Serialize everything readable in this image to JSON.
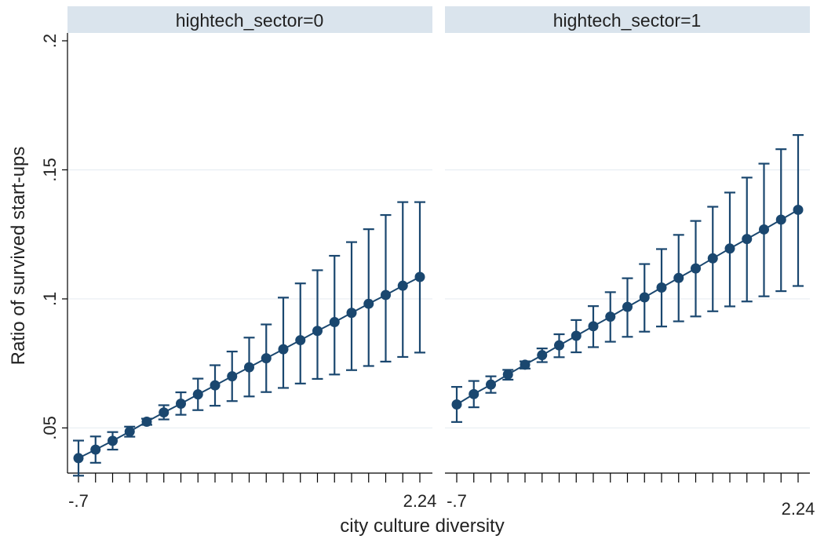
{
  "colors": {
    "series": "#1a476f",
    "strip": "#dae4ed",
    "grid": "#e8edf2",
    "axis": "#000000"
  },
  "chart_data": {
    "type": "line",
    "xlabel": "city culture diversity",
    "ylabel": "Ratio of survived start-ups",
    "xlim": [
      -0.7,
      2.24
    ],
    "ylim": [
      0.0325,
      0.2
    ],
    "x_tick_labels": [
      "-.7",
      "2.24"
    ],
    "y_tick_labels": [
      ".05",
      ".1",
      ".15",
      ".2"
    ],
    "y_ticks": [
      0.05,
      0.1,
      0.15,
      0.2
    ],
    "grid": "horizontal",
    "markers": "circle",
    "error_bars": "confidence interval",
    "x": [
      -0.7,
      -0.553,
      -0.406,
      -0.259,
      -0.112,
      0.035,
      0.182,
      0.329,
      0.476,
      0.623,
      0.77,
      0.917,
      1.064,
      1.211,
      1.358,
      1.505,
      1.652,
      1.799,
      1.946,
      2.093,
      2.24
    ],
    "panels": [
      {
        "title": "hightech_sector=0",
        "y": [
          0.0383,
          0.0416,
          0.045,
          0.0486,
          0.0524,
          0.056,
          0.0594,
          0.063,
          0.0665,
          0.07,
          0.0735,
          0.077,
          0.0805,
          0.084,
          0.0876,
          0.091,
          0.0946,
          0.0981,
          0.1015,
          0.1051,
          0.1085
        ],
        "lo": [
          0.0315,
          0.0365,
          0.0416,
          0.0466,
          0.0512,
          0.0533,
          0.0551,
          0.0569,
          0.0586,
          0.0604,
          0.0622,
          0.0639,
          0.0655,
          0.0672,
          0.069,
          0.0707,
          0.0724,
          0.074,
          0.0757,
          0.0775,
          0.0792
        ],
        "hi": [
          0.0451,
          0.0467,
          0.0484,
          0.0505,
          0.0536,
          0.0588,
          0.0638,
          0.0691,
          0.0743,
          0.0796,
          0.085,
          0.0901,
          0.1005,
          0.106,
          0.1111,
          0.1167,
          0.122,
          0.127,
          0.1325,
          0.1375,
          0.1375
        ]
      },
      {
        "title": "hightech_sector=1",
        "y": [
          0.0591,
          0.0631,
          0.0668,
          0.0707,
          0.0745,
          0.0782,
          0.082,
          0.0857,
          0.0894,
          0.0931,
          0.0969,
          0.1006,
          0.1044,
          0.1081,
          0.1118,
          0.1157,
          0.1195,
          0.1232,
          0.1269,
          0.1307,
          0.1345
        ],
        "lo": [
          0.0523,
          0.058,
          0.0636,
          0.0687,
          0.073,
          0.0755,
          0.0774,
          0.0793,
          0.0813,
          0.0834,
          0.0853,
          0.0873,
          0.0893,
          0.0913,
          0.0932,
          0.0952,
          0.0971,
          0.099,
          0.101,
          0.103,
          0.105
        ],
        "hi": [
          0.0659,
          0.0682,
          0.07,
          0.0725,
          0.0758,
          0.0808,
          0.0863,
          0.0918,
          0.0972,
          0.1026,
          0.108,
          0.1135,
          0.1193,
          0.1248,
          0.1302,
          0.1357,
          0.1412,
          0.147,
          0.1524,
          0.158,
          0.1635
        ]
      }
    ]
  }
}
